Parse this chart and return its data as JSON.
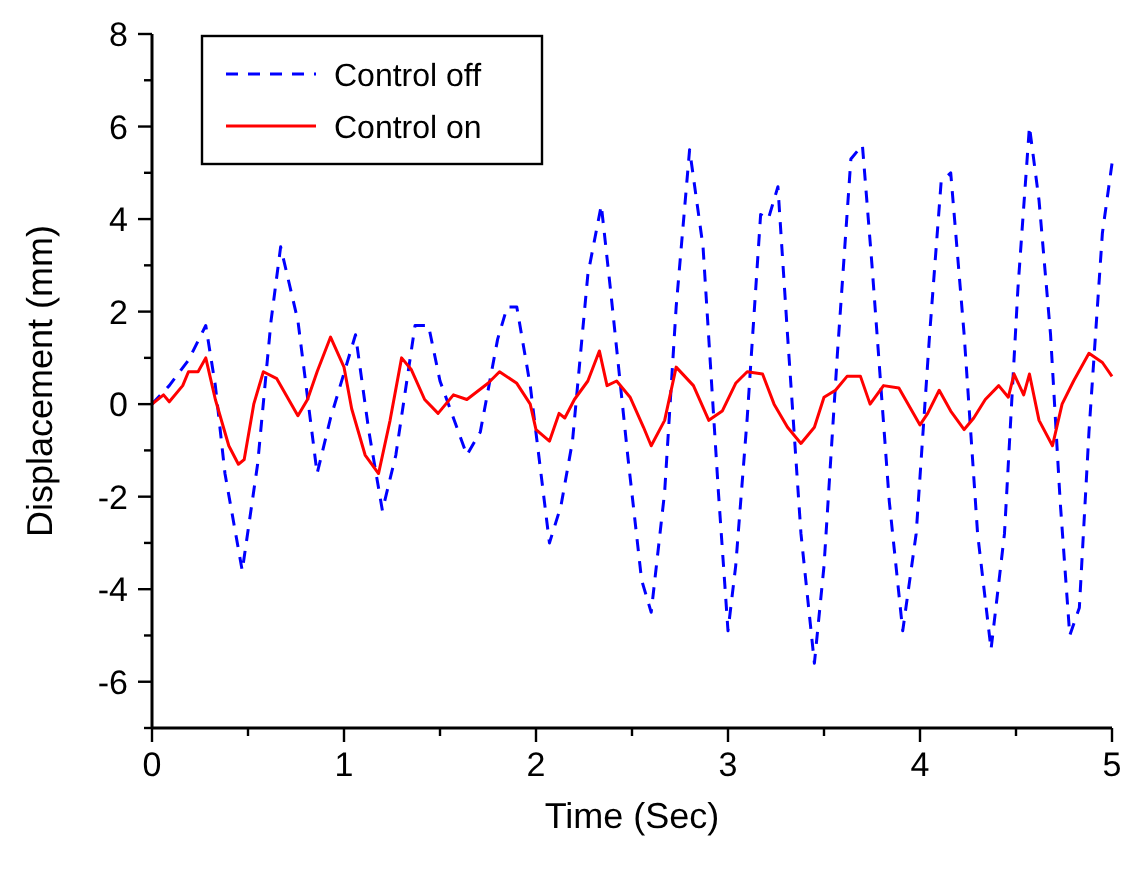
{
  "chart_data": {
    "type": "line",
    "xlabel": "Time (Sec)",
    "ylabel": "Displacement (mm)",
    "xlim": [
      0,
      5
    ],
    "ylim": [
      -7,
      8
    ],
    "xticks": [
      0,
      {
        "value": 0.5,
        "label": null
      },
      1,
      {
        "value": 1.5,
        "label": null
      },
      2,
      {
        "value": 2.5,
        "label": null
      },
      3,
      {
        "value": 3.5,
        "label": null
      },
      4,
      {
        "value": 4.5,
        "label": null
      },
      5
    ],
    "yticks": [
      {
        "value": -7,
        "label": null
      },
      -6,
      {
        "value": -5,
        "label": null
      },
      -4,
      {
        "value": -3,
        "label": null
      },
      -2,
      {
        "value": -1,
        "label": null
      },
      0,
      {
        "value": 1,
        "label": null
      },
      2,
      {
        "value": 3,
        "label": null
      },
      4,
      {
        "value": 5,
        "label": null
      },
      6,
      {
        "value": 7,
        "label": null
      },
      8
    ],
    "legend": "top left",
    "grid": false,
    "series": [
      {
        "name": "Control off",
        "color": "#0000ff",
        "line_style": "dashed",
        "x": [
          0,
          0.09,
          0.19,
          0.28,
          0.33,
          0.38,
          0.47,
          0.55,
          0.62,
          0.67,
          0.76,
          0.86,
          0.93,
          1.06,
          1.13,
          1.2,
          1.27,
          1.37,
          1.44,
          1.5,
          1.64,
          1.71,
          1.8,
          1.85,
          1.9,
          1.97,
          2.07,
          2.13,
          2.19,
          2.27,
          2.34,
          2.39,
          2.48,
          2.55,
          2.6,
          2.67,
          2.73,
          2.8,
          2.87,
          2.95,
          3.0,
          3.04,
          3.1,
          3.17,
          3.21,
          3.26,
          3.31,
          3.38,
          3.45,
          3.5,
          3.57,
          3.64,
          3.7,
          3.75,
          3.84,
          3.91,
          3.98,
          4.05,
          4.11,
          4.16,
          4.23,
          4.3,
          4.37,
          4.44,
          4.51,
          4.57,
          4.62,
          4.68,
          4.73,
          4.78,
          4.83,
          4.88,
          4.95,
          5.0
        ],
        "values": [
          0,
          0.4,
          0.95,
          1.7,
          0.4,
          -1.5,
          -3.6,
          -1.3,
          1.8,
          3.4,
          1.8,
          -1.5,
          -0.3,
          1.5,
          -0.6,
          -2.3,
          -1.1,
          1.7,
          1.7,
          0.5,
          -1.1,
          -0.6,
          1.4,
          2.1,
          2.1,
          0.4,
          -3.0,
          -2.2,
          -0.8,
          2.8,
          4.3,
          2.4,
          -1.2,
          -3.8,
          -4.5,
          -1.9,
          2.1,
          5.5,
          3.4,
          -1.9,
          -4.9,
          -3.5,
          -0.3,
          4.1,
          4.0,
          4.7,
          1.5,
          -2.8,
          -5.6,
          -3.5,
          1.1,
          5.3,
          5.6,
          3.0,
          -2.1,
          -4.9,
          -2.8,
          1.5,
          4.8,
          5.0,
          1.5,
          -2.8,
          -5.3,
          -2.8,
          2.5,
          6.0,
          4.4,
          1.5,
          -2.1,
          -5.0,
          -4.4,
          -0.6,
          3.7,
          5.2
        ]
      },
      {
        "name": "Control on",
        "color": "#ff0000",
        "line_style": "solid",
        "x": [
          0,
          0.06,
          0.09,
          0.16,
          0.19,
          0.24,
          0.28,
          0.33,
          0.4,
          0.45,
          0.48,
          0.53,
          0.58,
          0.65,
          0.76,
          0.81,
          0.86,
          0.93,
          1.0,
          1.04,
          1.11,
          1.18,
          1.24,
          1.3,
          1.35,
          1.42,
          1.49,
          1.57,
          1.64,
          1.75,
          1.81,
          1.9,
          1.97,
          2.0,
          2.07,
          2.12,
          2.15,
          2.2,
          2.27,
          2.33,
          2.37,
          2.42,
          2.49,
          2.56,
          2.6,
          2.67,
          2.73,
          2.82,
          2.9,
          2.97,
          3.04,
          3.1,
          3.18,
          3.24,
          3.31,
          3.38,
          3.45,
          3.5,
          3.56,
          3.62,
          3.69,
          3.74,
          3.81,
          3.89,
          4.0,
          4.04,
          4.1,
          4.16,
          4.23,
          4.28,
          4.34,
          4.41,
          4.46,
          4.49,
          4.54,
          4.57,
          4.62,
          4.69,
          4.74,
          4.8,
          4.88,
          4.95,
          5.0
        ],
        "values": [
          0,
          0.2,
          0.05,
          0.4,
          0.7,
          0.7,
          1.0,
          0.1,
          -0.9,
          -1.3,
          -1.2,
          0,
          0.7,
          0.55,
          -0.25,
          0.1,
          0.7,
          1.45,
          0.8,
          -0.1,
          -1.1,
          -1.5,
          -0.35,
          1.0,
          0.75,
          0.1,
          -0.2,
          0.2,
          0.1,
          0.45,
          0.7,
          0.45,
          0,
          -0.55,
          -0.8,
          -0.2,
          -0.3,
          0.1,
          0.5,
          1.15,
          0.4,
          0.5,
          0.15,
          -0.5,
          -0.9,
          -0.35,
          0.8,
          0.4,
          -0.35,
          -0.15,
          0.45,
          0.7,
          0.65,
          0,
          -0.5,
          -0.85,
          -0.5,
          0.15,
          0.3,
          0.6,
          0.6,
          0,
          0.4,
          0.35,
          -0.45,
          -0.2,
          0.3,
          -0.15,
          -0.55,
          -0.3,
          0.1,
          0.4,
          0.15,
          0.65,
          0.2,
          0.65,
          -0.35,
          -0.9,
          0,
          0.5,
          1.1,
          0.9,
          0.6
        ]
      }
    ]
  }
}
